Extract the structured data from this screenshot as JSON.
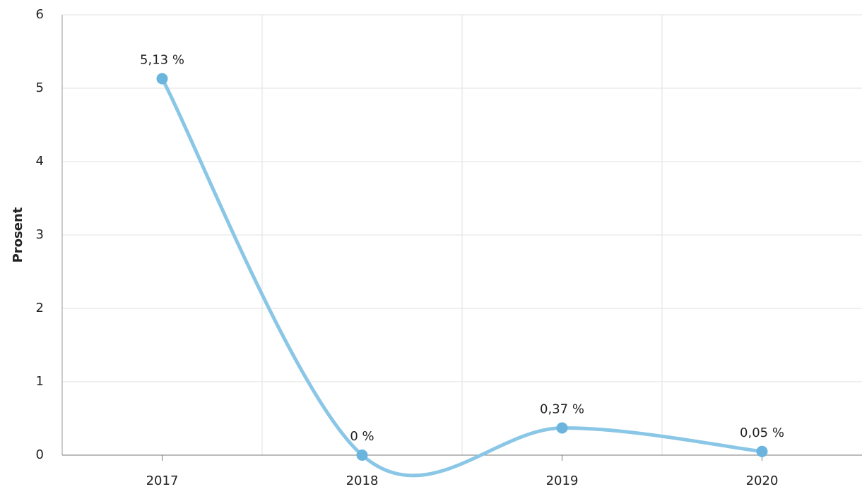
{
  "chart_data": {
    "type": "line",
    "y_label": "Prosent",
    "categories": [
      "2017",
      "2018",
      "2019",
      "2020"
    ],
    "series": [
      {
        "name": "Prosent",
        "color": "#6ab4dd",
        "line_color": "#8ac6e6",
        "values": [
          5.13,
          0,
          0.37,
          0.05
        ],
        "value_labels": [
          "5,13 %",
          "0 %",
          "0,37 %",
          "0,05 %"
        ]
      }
    ],
    "ylim": [
      0,
      6
    ],
    "yticks": [
      0,
      1,
      2,
      3,
      4,
      5,
      6
    ],
    "grid": true,
    "smooth": true
  }
}
